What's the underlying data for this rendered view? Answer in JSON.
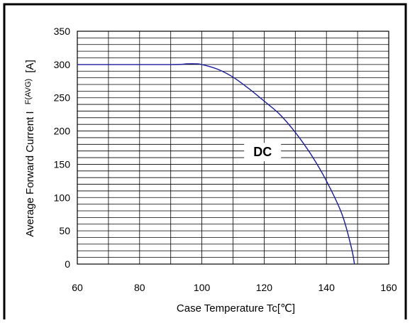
{
  "chart_data": {
    "type": "line",
    "title": "",
    "xlabel": "Case Temperature  Tc[℃]",
    "ylabel": "Average Forward Current I",
    "ylabel_subscript": "F(AVG)",
    "ylabel_unit": "[A]",
    "xlim": [
      60,
      160
    ],
    "ylim": [
      0,
      350
    ],
    "x_ticks": [
      "60",
      "80",
      "100",
      "120",
      "140",
      "160"
    ],
    "y_ticks": [
      "0",
      "50",
      "100",
      "150",
      "200",
      "250",
      "300",
      "350"
    ],
    "grid": true,
    "annotation": "DC",
    "series": [
      {
        "x": [
          60,
          90,
          95,
          98,
          100,
          105,
          110,
          115,
          120,
          125,
          130,
          135,
          140,
          145,
          148,
          149
        ],
        "y": [
          300,
          300,
          301,
          301,
          300,
          293,
          281,
          264,
          245,
          225,
          198,
          165,
          125,
          75,
          25,
          0
        ]
      }
    ],
    "colors": {
      "line": "#1a1aa0",
      "grid": "#000000",
      "frame": "#000000"
    }
  }
}
